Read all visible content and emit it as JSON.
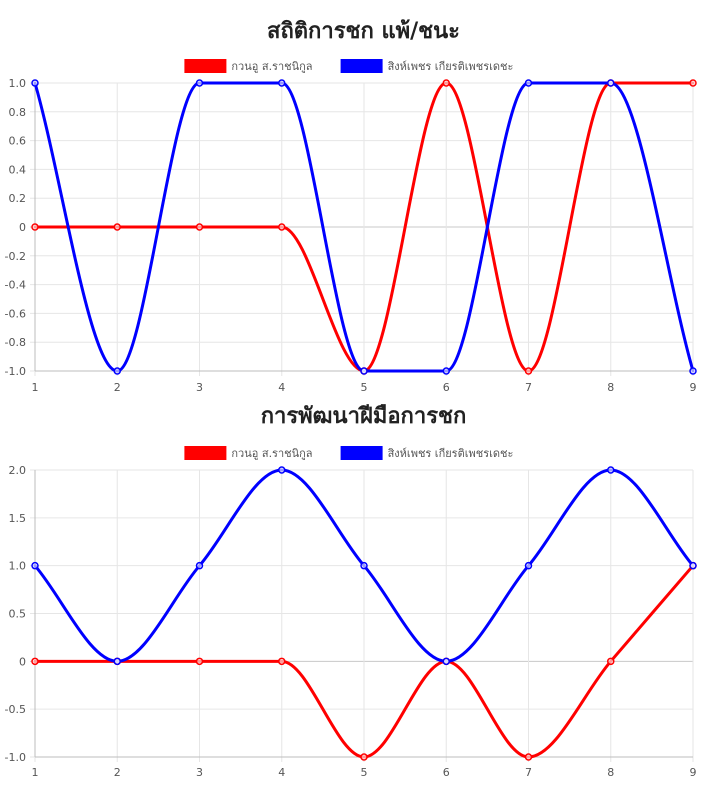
{
  "chart_data": [
    {
      "type": "line",
      "title": "สถิติการชก แพ้/ชนะ",
      "x": [
        1,
        2,
        3,
        4,
        5,
        6,
        7,
        8,
        9
      ],
      "ylim": [
        -1.0,
        1.0
      ],
      "yticks": [
        -1.0,
        -0.8,
        -0.6,
        -0.4,
        -0.2,
        0,
        0.2,
        0.4,
        0.6,
        0.8,
        1.0
      ],
      "ytick_labels": [
        "-1.0",
        "-0.8",
        "-0.6",
        "-0.4",
        "-0.2",
        "0",
        "0.2",
        "0.4",
        "0.6",
        "0.8",
        "1.0"
      ],
      "grid": true,
      "legend": "top",
      "series": [
        {
          "name": "กวนอู ส.ราชนิกูล",
          "color": "#ff0000",
          "values": [
            0,
            0,
            0,
            0,
            -1,
            1,
            -1,
            1,
            1
          ]
        },
        {
          "name": "สิงห์เพชร เกียรติเพชรเดชะ",
          "color": "#0000ff",
          "values": [
            1,
            -1,
            1,
            1,
            -1,
            -1,
            1,
            1,
            -1
          ]
        }
      ]
    },
    {
      "type": "line",
      "title": "การพัฒนาฝีมือการชก",
      "x": [
        1,
        2,
        3,
        4,
        5,
        6,
        7,
        8,
        9
      ],
      "ylim": [
        -1.0,
        2.0
      ],
      "yticks": [
        -1.0,
        -0.5,
        0,
        0.5,
        1.0,
        1.5,
        2.0
      ],
      "ytick_labels": [
        "-1.0",
        "-0.5",
        "0",
        "0.5",
        "1.0",
        "1.5",
        "2.0"
      ],
      "grid": true,
      "legend": "top",
      "series": [
        {
          "name": "กวนอู ส.ราชนิกูล",
          "color": "#ff0000",
          "values": [
            0,
            0,
            0,
            0,
            -1,
            0,
            -1,
            0,
            1
          ]
        },
        {
          "name": "สิงห์เพชร เกียรติเพชรเดชะ",
          "color": "#0000ff",
          "values": [
            1,
            0,
            1,
            2,
            1,
            0,
            1,
            2,
            1
          ]
        }
      ]
    }
  ]
}
